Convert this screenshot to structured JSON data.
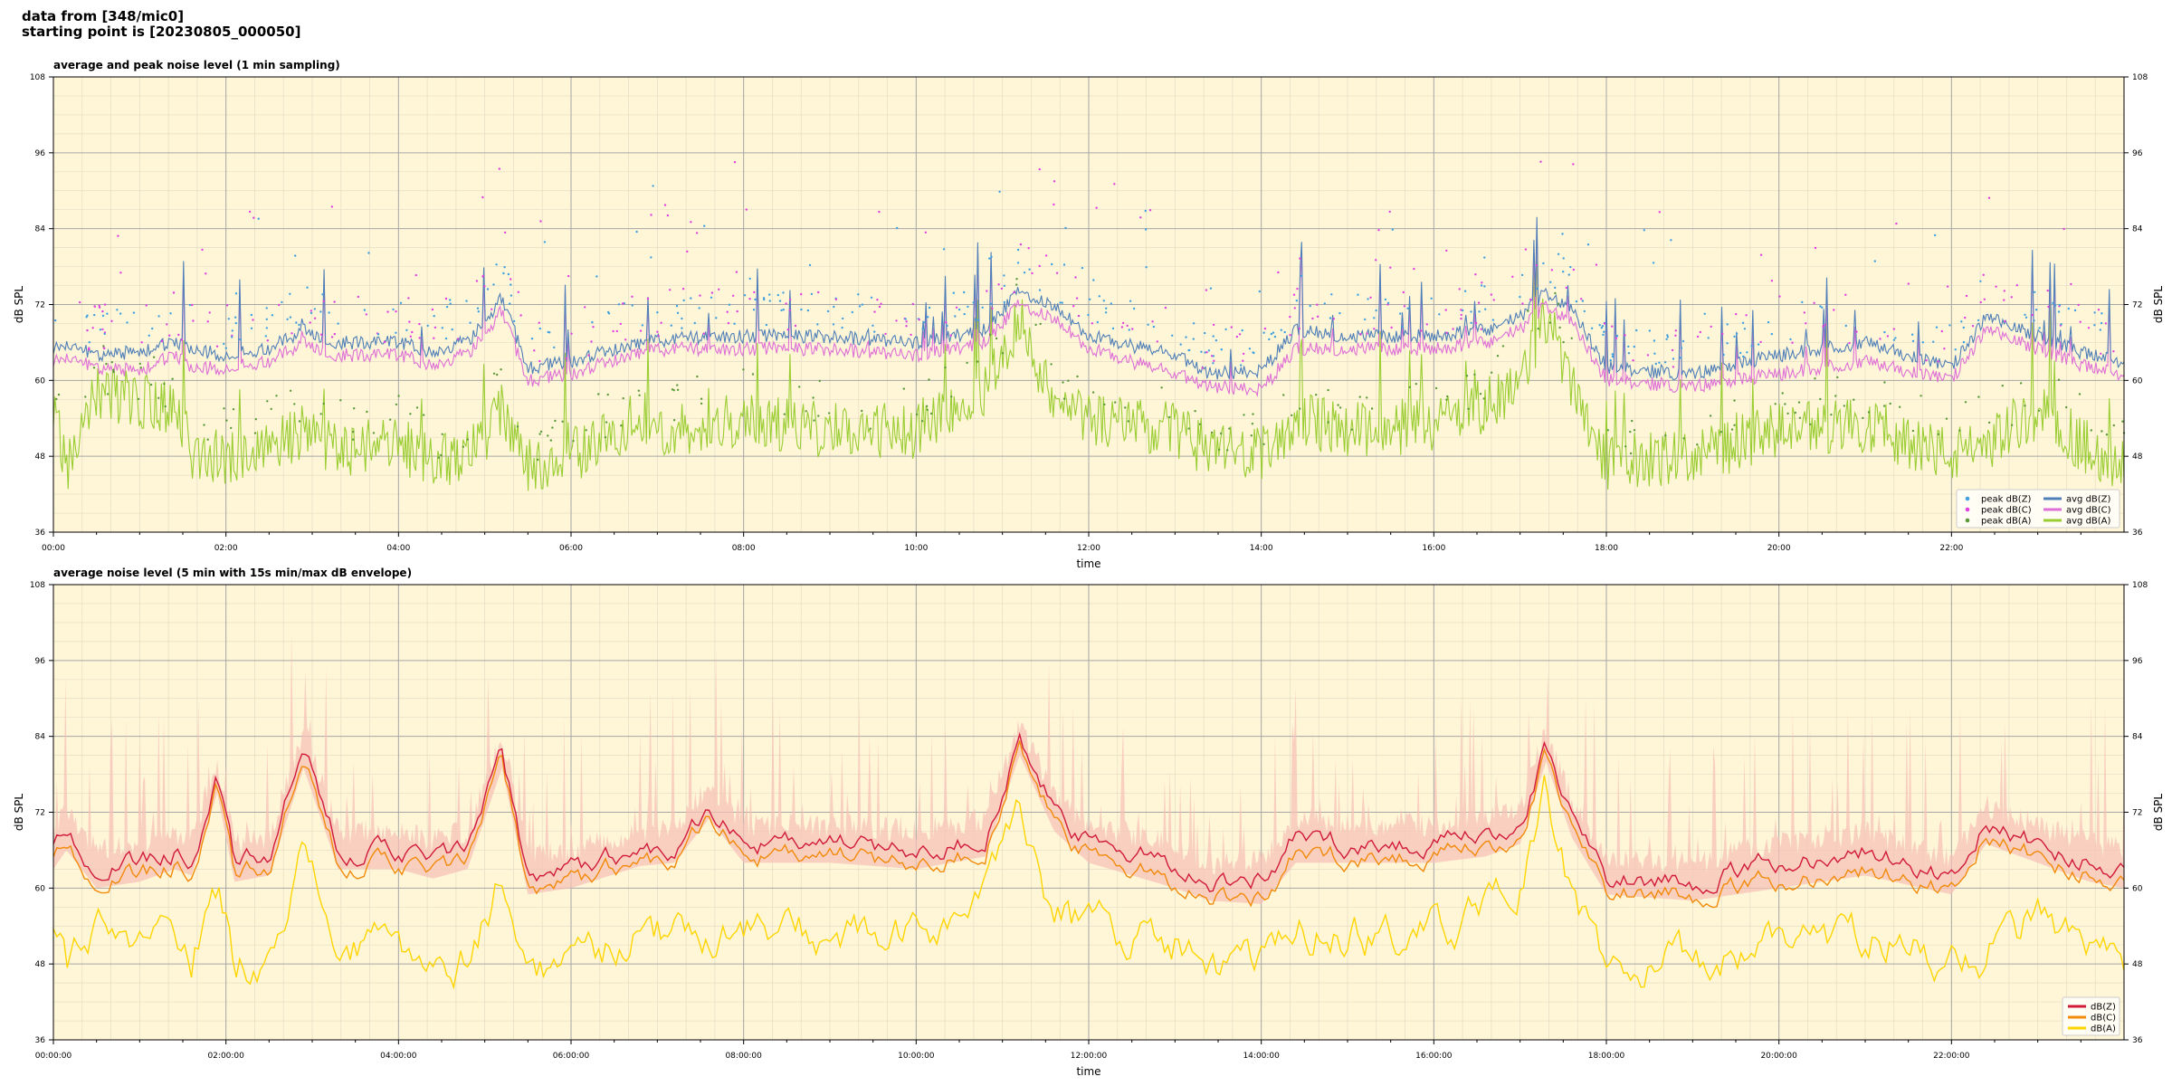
{
  "header": {
    "line1": "data from [348/mic0]",
    "line2": "starting point is [20230805_000050]"
  },
  "colors": {
    "plot_bg": "#fff6d8",
    "grid_major": "#a6a6a6",
    "grid_minor": "#e4dcc4",
    "zavg": "#4f7fb8",
    "cavg": "#de6fd6",
    "aavg": "#9acd32",
    "zpeak": "#3f9fdf",
    "cpeak": "#e040e0",
    "apeak": "#5a9a3a",
    "dbz": "#d11a3a",
    "dbc": "#f28a0a",
    "dba": "#ffd500",
    "envelope": "#f6c0b6"
  },
  "chart_data": [
    {
      "type": "line",
      "title": "average and peak noise level (1 min sampling)",
      "xlabel": "time",
      "ylabel": "dB SPL",
      "ylim": [
        36,
        108
      ],
      "yticks": [
        36,
        48,
        60,
        72,
        84,
        96,
        108
      ],
      "xlim_hours": [
        0,
        24
      ],
      "xticks": [
        "00:00",
        "02:00",
        "04:00",
        "06:00",
        "08:00",
        "10:00",
        "12:00",
        "14:00",
        "16:00",
        "18:00",
        "20:00",
        "22:00"
      ],
      "legend_position": "bottom-right",
      "legend": [
        "peak dB(Z)",
        "peak dB(C)",
        "peak dB(A)",
        "avg dB(Z)",
        "avg dB(C)",
        "avg dB(A)"
      ],
      "grid": true,
      "series_breakpoints": {
        "hours": [
          0,
          0.15,
          0.5,
          1.0,
          1.4,
          1.6,
          2.0,
          2.5,
          2.9,
          3.3,
          4.0,
          4.4,
          4.8,
          5.2,
          5.5,
          6.0,
          6.8,
          7.2,
          7.6,
          8.0,
          9.0,
          10.0,
          10.8,
          11.2,
          11.6,
          12.0,
          13.0,
          13.4,
          14.0,
          14.4,
          15.0,
          16.0,
          16.6,
          17.0,
          17.3,
          17.6,
          18.0,
          19.0,
          20.0,
          21.0,
          22.0,
          22.4,
          23.0,
          23.6,
          24.0
        ],
        "avg_dBZ": [
          65,
          66,
          64,
          64.5,
          66,
          65,
          64,
          65,
          68,
          66,
          66,
          64.5,
          66,
          73,
          62,
          63,
          66,
          66.5,
          67,
          67,
          67,
          66,
          68,
          74,
          72,
          67,
          64,
          61,
          61.5,
          68,
          67,
          67,
          68,
          70,
          74,
          71,
          62,
          61,
          64,
          66,
          62,
          70,
          67,
          64,
          63
        ],
        "avg_dBC": [
          63,
          64,
          62,
          61.5,
          64,
          62,
          62,
          63,
          66,
          64,
          64,
          62.5,
          64,
          71,
          60,
          61,
          64.5,
          65,
          65,
          65,
          65,
          64,
          66,
          72,
          70,
          65,
          61,
          59,
          58.5,
          65,
          65,
          65,
          66,
          68,
          72,
          69,
          60,
          59,
          61,
          63,
          60,
          68,
          65,
          62,
          61
        ],
        "avg_dBA": [
          56,
          46,
          58,
          57,
          55,
          49,
          48,
          49,
          52,
          49,
          50,
          47,
          48,
          55,
          47,
          48,
          54,
          52,
          53,
          54,
          52,
          52,
          58,
          70,
          56,
          54,
          52,
          49,
          48,
          54,
          52,
          53,
          56,
          60,
          70,
          60,
          47,
          48,
          52,
          53,
          48,
          50,
          55,
          49,
          47
        ]
      }
    },
    {
      "type": "line",
      "title": "average noise level (5 min with 15s min/max dB envelope)",
      "xlabel": "time",
      "ylabel": "dB SPL",
      "ylim": [
        36,
        108
      ],
      "yticks": [
        36,
        48,
        60,
        72,
        84,
        96,
        108
      ],
      "xlim_hours": [
        0,
        24
      ],
      "xticks": [
        "00:00:00",
        "02:00:00",
        "04:00:00",
        "06:00:00",
        "08:00:00",
        "10:00:00",
        "12:00:00",
        "14:00:00",
        "16:00:00",
        "18:00:00",
        "20:00:00",
        "22:00:00"
      ],
      "legend_position": "bottom-right",
      "legend": [
        "dB(Z)",
        "dB(C)",
        "dB(A)"
      ],
      "grid": true,
      "series_breakpoints": {
        "hours": [
          0,
          0.15,
          0.5,
          1.0,
          1.4,
          1.6,
          1.9,
          2.1,
          2.5,
          2.9,
          3.3,
          4.0,
          4.4,
          4.8,
          5.2,
          5.5,
          6.0,
          6.8,
          7.2,
          7.6,
          8.0,
          9.0,
          10.0,
          10.8,
          11.2,
          11.6,
          12.0,
          13.0,
          13.4,
          14.0,
          14.4,
          15.0,
          16.0,
          16.6,
          17.0,
          17.3,
          17.6,
          18.0,
          19.0,
          20.0,
          21.0,
          22.0,
          22.4,
          23.0,
          23.6,
          24.0
        ],
        "dBZ": [
          66,
          69,
          63,
          64,
          66,
          65,
          77,
          64,
          65,
          82,
          66,
          66,
          64.5,
          66,
          81,
          62,
          63,
          66,
          66.5,
          73,
          67,
          67,
          66,
          68,
          83,
          72,
          67,
          64,
          61,
          61.5,
          68,
          67,
          67,
          68,
          70,
          82,
          71,
          62,
          61,
          64,
          66,
          62,
          70,
          67,
          64,
          63
        ],
        "dBC": [
          64,
          67,
          61,
          62,
          64,
          63,
          76,
          62,
          63,
          80,
          64,
          64,
          62.5,
          64,
          80,
          60,
          61,
          64.5,
          65,
          72,
          65,
          65,
          64,
          66,
          82,
          70,
          65,
          61,
          59,
          58.5,
          65,
          65,
          65,
          66,
          68,
          81,
          69,
          60,
          59,
          61,
          63,
          60,
          68,
          65,
          62,
          61
        ],
        "dBA": [
          56,
          48,
          52,
          50,
          54,
          49,
          60,
          48,
          50,
          66,
          50,
          50,
          48,
          49,
          62,
          47,
          48,
          54,
          52,
          53,
          54,
          52,
          52,
          58,
          75,
          56,
          54,
          52,
          47,
          47,
          54,
          52,
          53,
          56,
          60,
          75,
          60,
          47,
          48,
          52,
          53,
          48,
          50,
          55,
          49,
          47
        ]
      }
    }
  ]
}
